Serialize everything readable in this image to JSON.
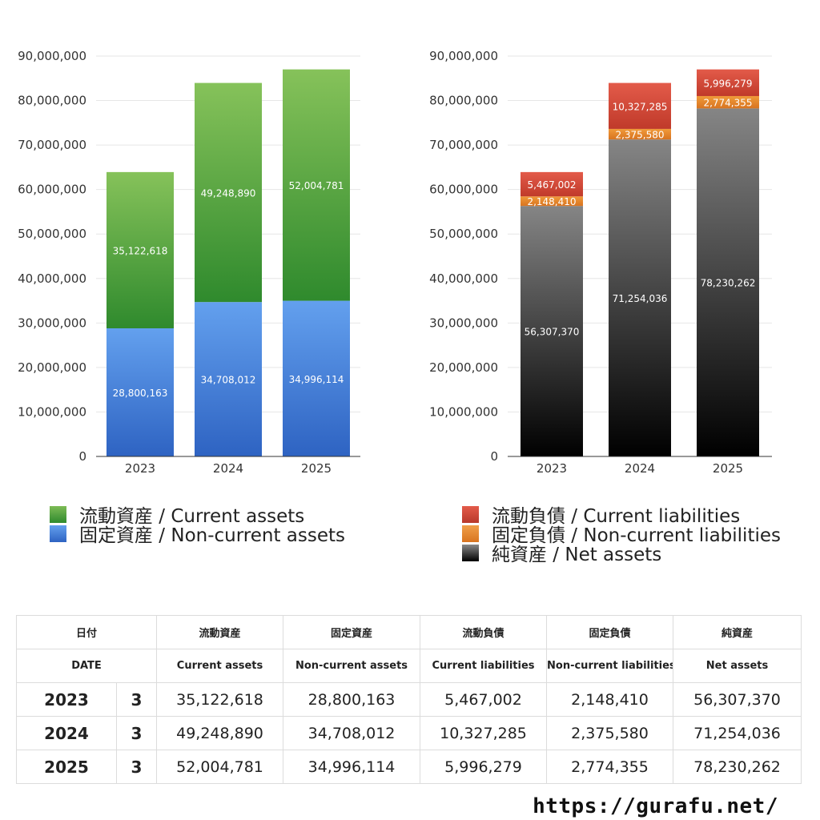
{
  "chart_data": [
    {
      "type": "bar",
      "stacked": true,
      "categories": [
        "2023",
        "2024",
        "2025"
      ],
      "ylim": [
        0,
        90000000
      ],
      "yticks": [
        0,
        10000000,
        20000000,
        30000000,
        40000000,
        50000000,
        60000000,
        70000000,
        80000000,
        90000000
      ],
      "grid": true,
      "legend_position": "bottom",
      "series": [
        {
          "name": "固定資産 / Non-current assets",
          "values": [
            28800163,
            34708012,
            34996114
          ],
          "color_top": "#63a0ee",
          "color_bottom": "#2e63c2"
        },
        {
          "name": "流動資産 / Current assets",
          "values": [
            35122618,
            49248890,
            52004781
          ],
          "color_top": "#86c25a",
          "color_bottom": "#2f8a2d"
        }
      ]
    },
    {
      "type": "bar",
      "stacked": true,
      "categories": [
        "2023",
        "2024",
        "2025"
      ],
      "ylim": [
        0,
        90000000
      ],
      "yticks": [
        0,
        10000000,
        20000000,
        30000000,
        40000000,
        50000000,
        60000000,
        70000000,
        80000000,
        90000000
      ],
      "grid": true,
      "legend_position": "bottom",
      "series": [
        {
          "name": "純資産 / Net assets",
          "values": [
            56307370,
            71254036,
            78230262
          ],
          "color_top": "#858585",
          "color_bottom": "#000000"
        },
        {
          "name": "固定負債 / Non-current liabilities",
          "values": [
            2148410,
            2375580,
            2774355
          ],
          "color_top": "#f09a3a",
          "color_bottom": "#d87420"
        },
        {
          "name": "流動負債 / Current liabilities",
          "values": [
            5467002,
            10327285,
            5996279
          ],
          "color_top": "#e35b4a",
          "color_bottom": "#c03a2a"
        }
      ]
    }
  ],
  "legend_left": [
    {
      "label": "流動資産 / Current assets",
      "color": "#4ca33a"
    },
    {
      "label": "固定資産 / Non-current assets",
      "color": "#3d7fd8"
    }
  ],
  "legend_right": [
    {
      "label": "流動負債 / Current liabilities",
      "color": "#d94a3a"
    },
    {
      "label": "固定負債 / Non-current liabilities",
      "color": "#e8862e"
    },
    {
      "label": "純資産 / Net assets",
      "color": "#2a2a2a"
    }
  ],
  "table": {
    "header_jp": [
      "日付",
      "流動資産",
      "固定資産",
      "流動負債",
      "固定負債",
      "純資産"
    ],
    "header_en": [
      "DATE",
      "Current assets",
      "Non-current assets",
      "Current liabilities",
      "Non-current liabilities",
      "Net assets"
    ],
    "rows": [
      {
        "date": "2023",
        "month": "3",
        "values": [
          "35,122,618",
          "28,800,163",
          "5,467,002",
          "2,148,410",
          "56,307,370"
        ]
      },
      {
        "date": "2024",
        "month": "3",
        "values": [
          "49,248,890",
          "34,708,012",
          "10,327,285",
          "2,375,580",
          "71,254,036"
        ]
      },
      {
        "date": "2025",
        "month": "3",
        "values": [
          "52,004,781",
          "34,996,114",
          "5,996,279",
          "2,774,355",
          "78,230,262"
        ]
      }
    ]
  },
  "footer": {
    "url": "https://gurafu.net/"
  }
}
